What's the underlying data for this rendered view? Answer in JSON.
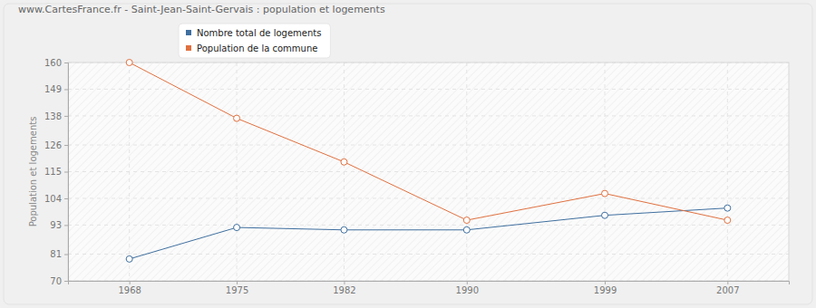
{
  "chart_data": {
    "type": "line",
    "title": "www.CartesFrance.fr - Saint-Jean-Saint-Gervais : population et logements",
    "y_label": "Population et logements",
    "x": [
      1968,
      1975,
      1982,
      1990,
      1999,
      2007
    ],
    "series": [
      {
        "name": "Nombre total de logements",
        "color": "#3f6f9f",
        "marker": "circle",
        "values": [
          79,
          92,
          91,
          91,
          97,
          100
        ]
      },
      {
        "name": "Population de la commune",
        "color": "#e0703f",
        "marker": "circle",
        "values": [
          160,
          137,
          119,
          95,
          106,
          95
        ]
      }
    ],
    "xlim": [
      1964,
      2011
    ],
    "xticks": [
      1968,
      1975,
      1982,
      1990,
      1999,
      2007
    ],
    "ylim": [
      70,
      160
    ],
    "yticks": [
      70,
      81,
      93,
      104,
      115,
      126,
      138,
      149,
      160
    ],
    "grid": true,
    "legend": "top"
  }
}
